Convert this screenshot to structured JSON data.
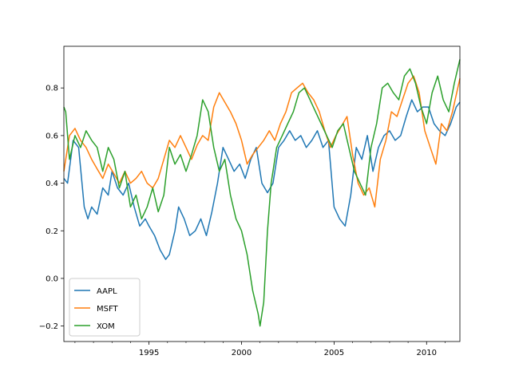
{
  "chart_data": {
    "type": "line",
    "title": "",
    "xlabel": "",
    "ylabel": "",
    "xlim": [
      1990.4,
      2011.8
    ],
    "ylim": [
      -0.265,
      0.975
    ],
    "xticks": [
      {
        "value": 1995,
        "label": "1995"
      },
      {
        "value": 2000,
        "label": "2000"
      },
      {
        "value": 2005,
        "label": "2005"
      },
      {
        "value": 2010,
        "label": "2010"
      }
    ],
    "yticks": [
      {
        "value": -0.2,
        "label": "−0.2"
      },
      {
        "value": 0.0,
        "label": "0.0"
      },
      {
        "value": 0.2,
        "label": "0.2"
      },
      {
        "value": 0.4,
        "label": "0.4"
      },
      {
        "value": 0.6,
        "label": "0.6"
      },
      {
        "value": 0.8,
        "label": "0.8"
      }
    ],
    "grid": false,
    "legend": {
      "position": "lower-left"
    },
    "series": [
      {
        "name": "AAPL",
        "color": "#1f77b4",
        "x": [
          1990.4,
          1990.6,
          1990.9,
          1991.2,
          1991.5,
          1991.7,
          1991.9,
          1992.2,
          1992.5,
          1992.8,
          1993.0,
          1993.3,
          1993.6,
          1993.9,
          1994.2,
          1994.5,
          1994.8,
          1995.0,
          1995.3,
          1995.6,
          1995.9,
          1996.1,
          1996.4,
          1996.6,
          1996.9,
          1997.2,
          1997.5,
          1997.8,
          1998.1,
          1998.4,
          1998.7,
          1999.0,
          1999.3,
          1999.6,
          1999.9,
          2000.2,
          2000.5,
          2000.8,
          2001.1,
          2001.4,
          2001.7,
          2002.0,
          2002.3,
          2002.6,
          2002.9,
          2003.2,
          2003.5,
          2003.8,
          2004.1,
          2004.4,
          2004.7,
          2005.0,
          2005.3,
          2005.6,
          2005.9,
          2006.2,
          2006.5,
          2006.8,
          2007.1,
          2007.4,
          2007.7,
          2008.0,
          2008.3,
          2008.6,
          2008.9,
          2009.2,
          2009.5,
          2009.8,
          2010.1,
          2010.4,
          2010.7,
          2011.0,
          2011.3,
          2011.6,
          2011.8
        ],
        "values": [
          0.42,
          0.4,
          0.58,
          0.55,
          0.3,
          0.25,
          0.3,
          0.27,
          0.38,
          0.35,
          0.45,
          0.38,
          0.35,
          0.4,
          0.3,
          0.22,
          0.25,
          0.22,
          0.18,
          0.12,
          0.08,
          0.1,
          0.2,
          0.3,
          0.25,
          0.18,
          0.2,
          0.25,
          0.18,
          0.28,
          0.4,
          0.55,
          0.5,
          0.45,
          0.48,
          0.42,
          0.5,
          0.55,
          0.4,
          0.36,
          0.4,
          0.55,
          0.58,
          0.62,
          0.58,
          0.6,
          0.55,
          0.58,
          0.62,
          0.55,
          0.58,
          0.3,
          0.25,
          0.22,
          0.35,
          0.55,
          0.5,
          0.6,
          0.45,
          0.55,
          0.6,
          0.62,
          0.58,
          0.6,
          0.68,
          0.75,
          0.7,
          0.72,
          0.72,
          0.65,
          0.62,
          0.6,
          0.65,
          0.72,
          0.74
        ]
      },
      {
        "name": "MSFT",
        "color": "#ff7f0e",
        "x": [
          1990.4,
          1990.7,
          1991.0,
          1991.3,
          1991.6,
          1991.9,
          1992.2,
          1992.5,
          1992.8,
          1993.1,
          1993.4,
          1993.7,
          1994.0,
          1994.3,
          1994.6,
          1994.9,
          1995.2,
          1995.5,
          1995.8,
          1996.1,
          1996.4,
          1996.7,
          1997.0,
          1997.3,
          1997.6,
          1997.9,
          1998.2,
          1998.5,
          1998.8,
          1999.1,
          1999.4,
          1999.7,
          2000.0,
          2000.3,
          2000.6,
          2000.9,
          2001.2,
          2001.5,
          2001.8,
          2002.1,
          2002.4,
          2002.7,
          2003.0,
          2003.3,
          2003.6,
          2003.9,
          2004.2,
          2004.5,
          2004.8,
          2005.1,
          2005.4,
          2005.7,
          2006.0,
          2006.3,
          2006.6,
          2006.9,
          2007.2,
          2007.5,
          2007.8,
          2008.1,
          2008.4,
          2008.7,
          2009.0,
          2009.3,
          2009.6,
          2009.9,
          2010.2,
          2010.5,
          2010.8,
          2011.1,
          2011.4,
          2011.8
        ],
        "values": [
          0.45,
          0.6,
          0.63,
          0.58,
          0.55,
          0.5,
          0.46,
          0.42,
          0.48,
          0.44,
          0.4,
          0.45,
          0.4,
          0.42,
          0.45,
          0.4,
          0.38,
          0.42,
          0.5,
          0.58,
          0.55,
          0.6,
          0.55,
          0.5,
          0.56,
          0.6,
          0.58,
          0.72,
          0.78,
          0.74,
          0.7,
          0.65,
          0.58,
          0.48,
          0.52,
          0.55,
          0.58,
          0.62,
          0.58,
          0.65,
          0.7,
          0.78,
          0.8,
          0.82,
          0.78,
          0.75,
          0.7,
          0.62,
          0.55,
          0.6,
          0.64,
          0.68,
          0.52,
          0.4,
          0.35,
          0.38,
          0.3,
          0.5,
          0.58,
          0.7,
          0.68,
          0.75,
          0.82,
          0.85,
          0.78,
          0.62,
          0.55,
          0.48,
          0.65,
          0.62,
          0.7,
          0.84
        ]
      },
      {
        "name": "XOM",
        "color": "#2ca02c",
        "x": [
          1990.4,
          1990.5,
          1990.7,
          1991.0,
          1991.3,
          1991.6,
          1991.9,
          1992.2,
          1992.5,
          1992.8,
          1993.1,
          1993.4,
          1993.7,
          1994.0,
          1994.3,
          1994.6,
          1994.9,
          1995.2,
          1995.5,
          1995.8,
          1996.1,
          1996.4,
          1996.7,
          1997.0,
          1997.3,
          1997.6,
          1997.9,
          1998.2,
          1998.5,
          1998.8,
          1999.1,
          1999.4,
          1999.7,
          2000.0,
          2000.3,
          2000.6,
          2000.9,
          2001.0,
          2001.2,
          2001.4,
          2001.6,
          2001.9,
          2002.2,
          2002.5,
          2002.8,
          2003.1,
          2003.4,
          2003.7,
          2004.0,
          2004.3,
          2004.6,
          2004.9,
          2005.2,
          2005.5,
          2005.8,
          2006.1,
          2006.4,
          2006.7,
          2007.0,
          2007.3,
          2007.6,
          2007.9,
          2008.2,
          2008.5,
          2008.8,
          2009.1,
          2009.4,
          2009.7,
          2010.0,
          2010.3,
          2010.6,
          2010.9,
          2011.2,
          2011.5,
          2011.8
        ],
        "values": [
          0.72,
          0.7,
          0.5,
          0.6,
          0.55,
          0.62,
          0.58,
          0.55,
          0.45,
          0.55,
          0.5,
          0.38,
          0.45,
          0.3,
          0.35,
          0.25,
          0.3,
          0.38,
          0.28,
          0.35,
          0.55,
          0.48,
          0.52,
          0.45,
          0.52,
          0.6,
          0.75,
          0.7,
          0.55,
          0.45,
          0.5,
          0.35,
          0.25,
          0.2,
          0.1,
          -0.05,
          -0.15,
          -0.2,
          -0.1,
          0.2,
          0.4,
          0.55,
          0.6,
          0.65,
          0.7,
          0.78,
          0.8,
          0.75,
          0.7,
          0.65,
          0.6,
          0.55,
          0.62,
          0.65,
          0.55,
          0.45,
          0.4,
          0.35,
          0.55,
          0.65,
          0.8,
          0.82,
          0.78,
          0.75,
          0.85,
          0.88,
          0.82,
          0.72,
          0.65,
          0.78,
          0.85,
          0.75,
          0.7,
          0.82,
          0.92
        ]
      }
    ]
  }
}
